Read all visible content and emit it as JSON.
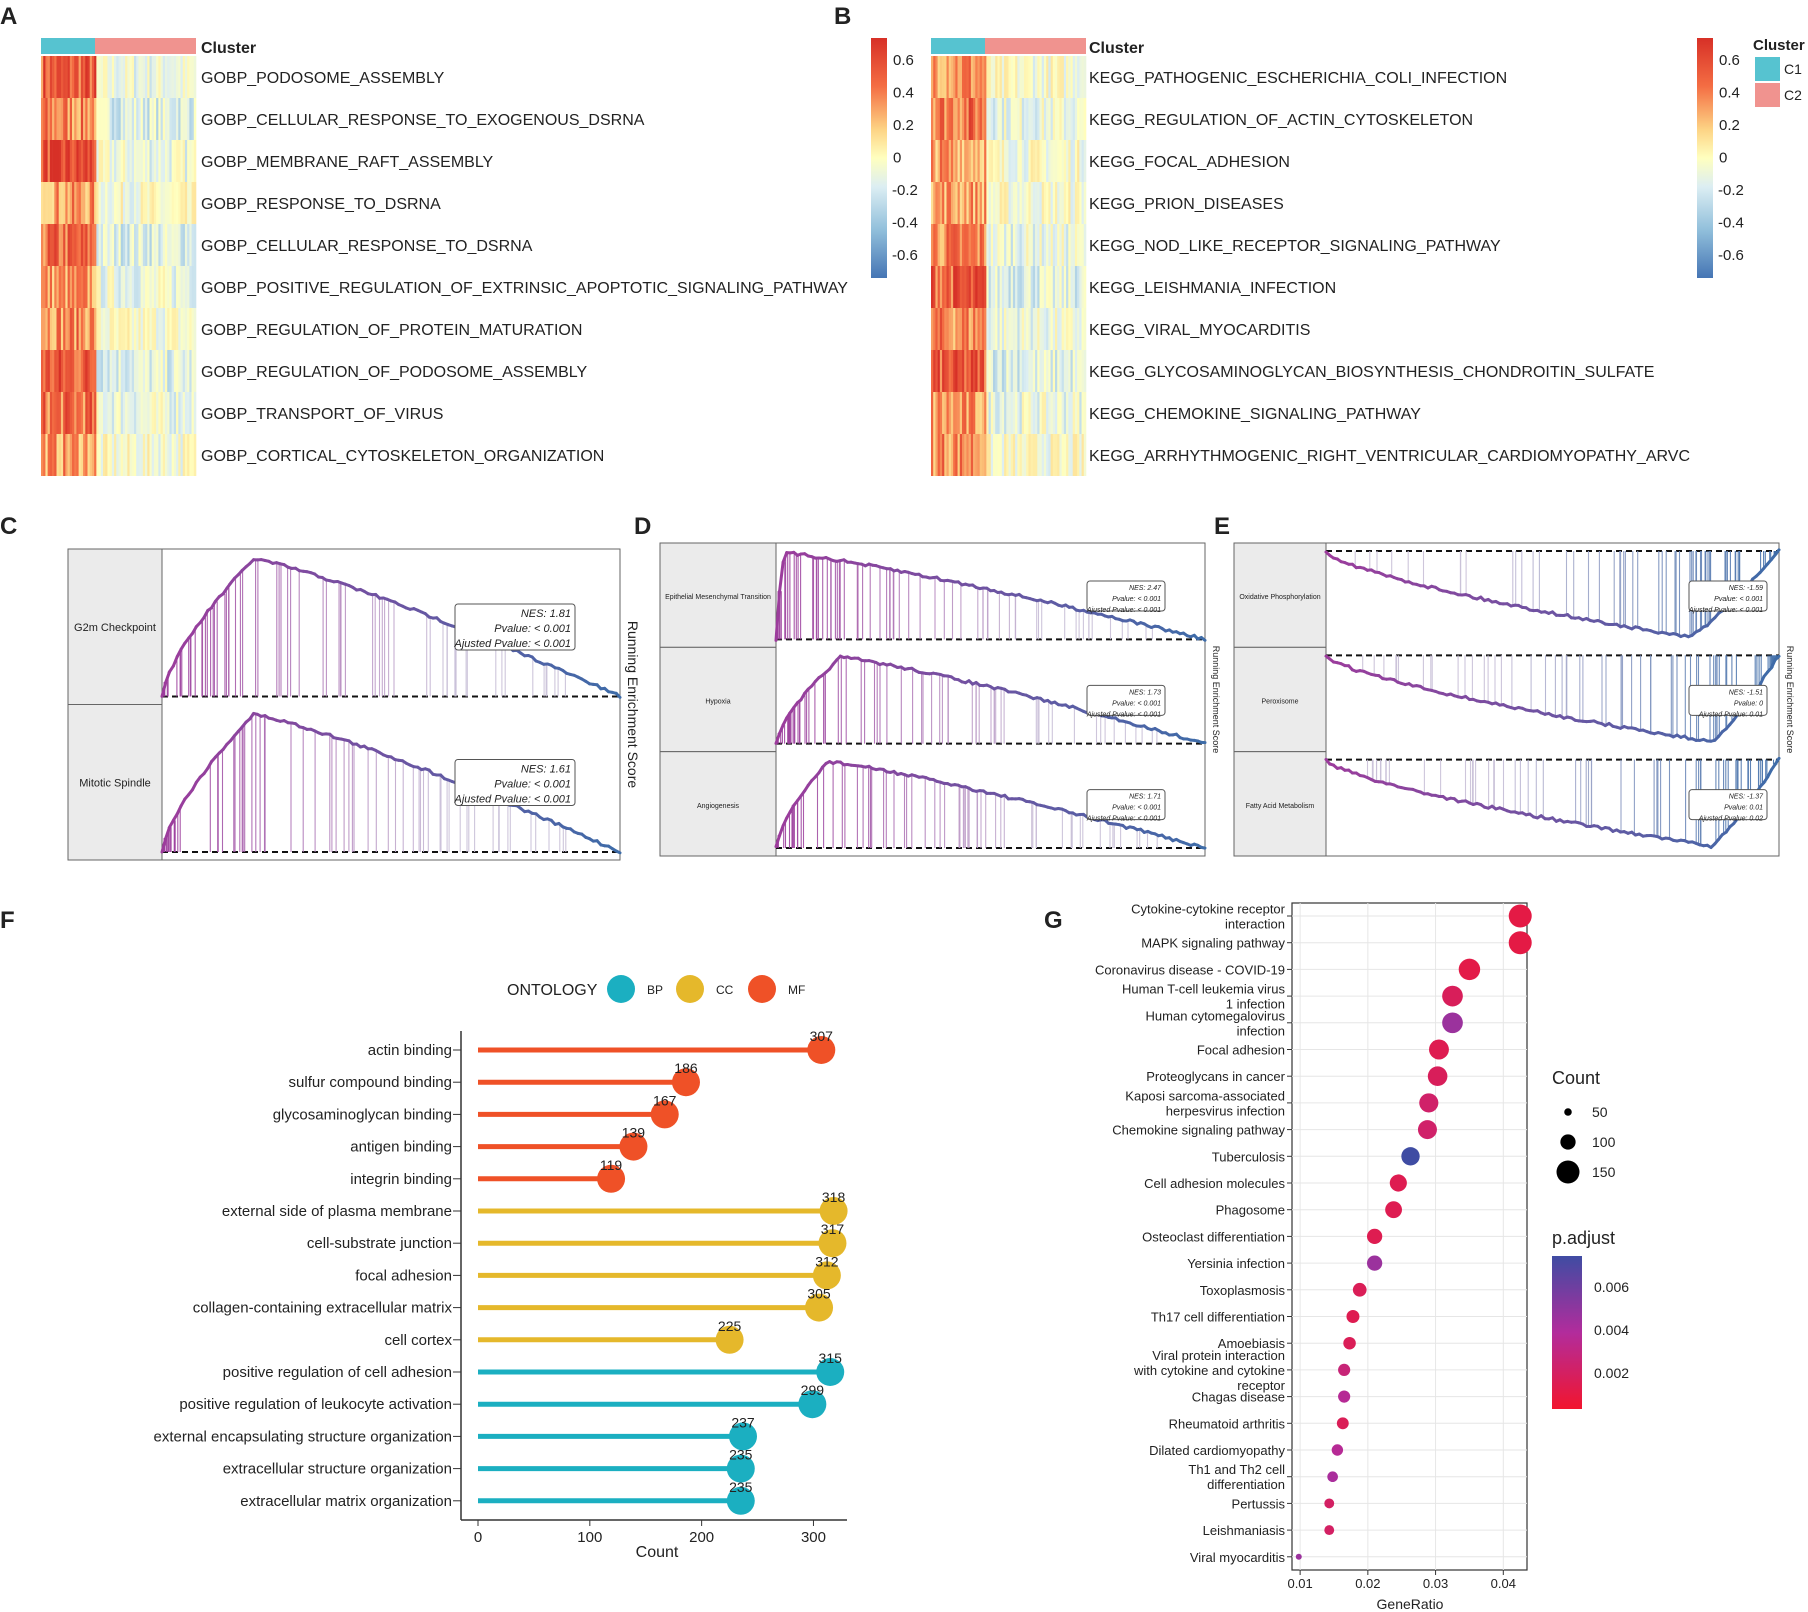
{
  "chart_data": [
    {
      "panel": "A",
      "type": "heatmap",
      "annotation_title": "Cluster",
      "rows": [
        "GOBP_PODOSOME_ASSEMBLY",
        "GOBP_CELLULAR_RESPONSE_TO_EXOGENOUS_DSRNA",
        "GOBP_MEMBRANE_RAFT_ASSEMBLY",
        "GOBP_RESPONSE_TO_DSRNA",
        "GOBP_CELLULAR_RESPONSE_TO_DSRNA",
        "GOBP_POSITIVE_REGULATION_OF_EXTRINSIC_APOPTOTIC_SIGNALING_PATHWAY",
        "GOBP_REGULATION_OF_PROTEIN_MATURATION",
        "GOBP_REGULATION_OF_PODOSOME_ASSEMBLY",
        "GOBP_TRANSPORT_OF_VIRUS",
        "GOBP_CORTICAL_CYTOSKELETON_ORGANIZATION"
      ],
      "row_means_C1": [
        0.45,
        0.35,
        0.5,
        0.3,
        0.4,
        0.3,
        0.35,
        0.45,
        0.4,
        0.3
      ],
      "row_means_C2": [
        -0.1,
        -0.15,
        -0.1,
        -0.05,
        -0.15,
        -0.1,
        -0.05,
        -0.15,
        -0.1,
        -0.05
      ],
      "scale_ticks": [
        "0.6",
        "0.4",
        "0.2",
        "0",
        "-0.2",
        "-0.4",
        "-0.6"
      ]
    },
    {
      "panel": "B",
      "type": "heatmap",
      "annotation_title": "Cluster",
      "rows": [
        "KEGG_PATHOGENIC_ESCHERICHIA_COLI_INFECTION",
        "KEGG_REGULATION_OF_ACTIN_CYTOSKELETON",
        "KEGG_FOCAL_ADHESION",
        "KEGG_PRION_DISEASES",
        "KEGG_NOD_LIKE_RECEPTOR_SIGNALING_PATHWAY",
        "KEGG_LEISHMANIA_INFECTION",
        "KEGG_VIRAL_MYOCARDITIS",
        "KEGG_GLYCOSAMINOGLYCAN_BIOSYNTHESIS_CHONDROITIN_SULFATE",
        "KEGG_CHEMOKINE_SIGNALING_PATHWAY",
        "KEGG_ARRHYTHMOGENIC_RIGHT_VENTRICULAR_CARDIOMYOPATHY_ARVC"
      ],
      "row_means_C1": [
        0.35,
        0.4,
        0.3,
        0.3,
        0.35,
        0.45,
        0.35,
        0.45,
        0.3,
        0.35
      ],
      "row_means_C2": [
        -0.05,
        -0.1,
        -0.05,
        -0.05,
        -0.1,
        -0.15,
        -0.1,
        -0.15,
        -0.1,
        -0.05
      ],
      "scale_ticks": [
        "0.6",
        "0.4",
        "0.2",
        "0",
        "-0.2",
        "-0.4",
        "-0.6"
      ],
      "legend_title": "Cluster",
      "legend": [
        "C1",
        "C2"
      ]
    },
    {
      "panel": "C",
      "type": "line",
      "y_axis_label": "Running Enrichment Score",
      "gsea": [
        {
          "name": "G2m Checkpoint",
          "stats": [
            "NES: 1.81",
            "Pvalue: < 0.001",
            "Ajusted Pvalue: < 0.001"
          ],
          "peak": 0.2,
          "dir": "pos"
        },
        {
          "name": "Mitotic Spindle",
          "stats": [
            "NES: 1.61",
            "Pvalue: < 0.001",
            "Ajusted Pvalue: < 0.001"
          ],
          "peak": 0.2,
          "dir": "pos"
        }
      ]
    },
    {
      "panel": "D",
      "type": "line",
      "y_axis_label": "Running Enrichment Score",
      "gsea": [
        {
          "name": "Epithelial Mesenchymal Transition",
          "stats": [
            "NES: 2.47",
            "Pvalue: < 0.001",
            "Ajusted Pvalue: < 0.001"
          ],
          "peak": 0.02,
          "dir": "pos"
        },
        {
          "name": "Hypoxia",
          "stats": [
            "NES: 1.73",
            "Pvalue: < 0.001",
            "Ajusted Pvalue: < 0.001"
          ],
          "peak": 0.15,
          "dir": "pos"
        },
        {
          "name": "Angiogenesis",
          "stats": [
            "NES: 1.71",
            "Pvalue: < 0.001",
            "Ajusted Pvalue: < 0.001"
          ],
          "peak": 0.12,
          "dir": "pos"
        }
      ]
    },
    {
      "panel": "E",
      "type": "line",
      "y_axis_label": "Running Enrichment Score",
      "gsea": [
        {
          "name": "Oxidative Phosphorylation",
          "stats": [
            "NES: -1.59",
            "Pvalue: < 0.001",
            "Ajusted Pvalue: < 0.001"
          ],
          "peak": 0.8,
          "dir": "neg"
        },
        {
          "name": "Peroxisome",
          "stats": [
            "NES: -1.51",
            "Pvalue: 0",
            "Ajusted Pvalue: 0.01"
          ],
          "peak": 0.85,
          "dir": "neg"
        },
        {
          "name": "Fatty Acid Metabolism",
          "stats": [
            "NES: -1.37",
            "Pvalue: 0.01",
            "Ajusted Pvalue: 0.02"
          ],
          "peak": 0.85,
          "dir": "neg"
        }
      ]
    },
    {
      "panel": "F",
      "type": "bar",
      "xlabel": "Count",
      "xlim": [
        0,
        330
      ],
      "xticks": [
        0,
        100,
        200,
        300
      ],
      "legend_title": "ONTOLOGY",
      "legend": [
        {
          "key": "BP",
          "color": "#1BAFC1"
        },
        {
          "key": "CC",
          "color": "#E5B82B"
        },
        {
          "key": "MF",
          "color": "#EF5127"
        }
      ],
      "categories": [
        "actin binding",
        "sulfur compound binding",
        "glycosaminoglycan binding",
        "antigen binding",
        "integrin binding",
        "external side of plasma membrane",
        "cell-substrate junction",
        "focal adhesion",
        "collagen-containing extracellular matrix",
        "cell cortex",
        "positive regulation of cell adhesion",
        "positive regulation of leukocyte activation",
        "external encapsulating structure organization",
        "extracellular structure organization",
        "extracellular matrix organization"
      ],
      "values": [
        307,
        186,
        167,
        139,
        119,
        318,
        317,
        312,
        305,
        225,
        315,
        299,
        237,
        235,
        235
      ],
      "ontology": [
        "MF",
        "MF",
        "MF",
        "MF",
        "MF",
        "CC",
        "CC",
        "CC",
        "CC",
        "CC",
        "BP",
        "BP",
        "BP",
        "BP",
        "BP"
      ]
    },
    {
      "panel": "G",
      "type": "scatter",
      "xlabel": "GeneRatio",
      "xlim": [
        0.0088,
        0.0435
      ],
      "xticks": [
        0.01,
        0.02,
        0.03,
        0.04
      ],
      "xtick_labels": [
        "0.01",
        "0.02",
        "0.03",
        "0.04"
      ],
      "size_legend_title": "Count",
      "size_legend": [
        50,
        100,
        150
      ],
      "color_legend_title": "p.adjust",
      "color_ticks": [
        "0.006",
        "0.004",
        "0.002"
      ],
      "color_range": [
        0.0,
        0.0075
      ],
      "categories": [
        [
          "Cytokine-cytokine receptor",
          "interaction"
        ],
        [
          "MAPK signaling pathway"
        ],
        [
          "Coronavirus disease - COVID-19"
        ],
        [
          "Human T-cell leukemia virus",
          "1 infection"
        ],
        [
          "Human cytomegalovirus",
          "infection"
        ],
        [
          "Focal adhesion"
        ],
        [
          "Proteoglycans in cancer"
        ],
        [
          "Kaposi sarcoma-associated",
          "herpesvirus infection"
        ],
        [
          "Chemokine signaling pathway"
        ],
        [
          "Tuberculosis"
        ],
        [
          "Cell adhesion molecules"
        ],
        [
          "Phagosome"
        ],
        [
          "Osteoclast differentiation"
        ],
        [
          "Yersinia infection"
        ],
        [
          "Toxoplasmosis"
        ],
        [
          "Th17 cell differentiation"
        ],
        [
          "Amoebiasis"
        ],
        [
          "Viral protein interaction",
          "with cytokine and cytokine",
          "receptor"
        ],
        [
          "Chagas disease"
        ],
        [
          "Rheumatoid arthritis"
        ],
        [
          "Dilated cardiomyopathy"
        ],
        [
          "Th1 and Th2 cell",
          "differentiation"
        ],
        [
          "Pertussis"
        ],
        [
          "Leishmaniasis"
        ],
        [
          "Viral myocarditis"
        ]
      ],
      "gene_ratio": [
        0.0425,
        0.0425,
        0.035,
        0.0325,
        0.0325,
        0.0305,
        0.0303,
        0.029,
        0.0288,
        0.0263,
        0.0245,
        0.0238,
        0.021,
        0.021,
        0.0188,
        0.0178,
        0.0173,
        0.0165,
        0.0165,
        0.0163,
        0.0155,
        0.0148,
        0.0143,
        0.0143,
        0.0098
      ],
      "count": [
        150,
        150,
        140,
        135,
        135,
        130,
        128,
        125,
        124,
        120,
        112,
        110,
        100,
        100,
        90,
        85,
        82,
        80,
        80,
        78,
        75,
        70,
        65,
        65,
        40
      ],
      "p_adjust": [
        0.0008,
        0.0008,
        0.0009,
        0.0015,
        0.0045,
        0.0012,
        0.0015,
        0.002,
        0.002,
        0.0075,
        0.0012,
        0.0012,
        0.0012,
        0.0045,
        0.0014,
        0.0012,
        0.0014,
        0.0025,
        0.0035,
        0.0014,
        0.0035,
        0.004,
        0.0018,
        0.0018,
        0.0045
      ]
    }
  ],
  "panel_labels": [
    "A",
    "B",
    "C",
    "D",
    "E",
    "F",
    "G"
  ],
  "colors": {
    "c1": "#56C3D0",
    "c2": "#F0938F",
    "accent_high": "#E2432B",
    "accent_low": "#4575B4",
    "gsea_pos": "#9C3C9C",
    "gsea_neg": "#3D6CA8"
  }
}
